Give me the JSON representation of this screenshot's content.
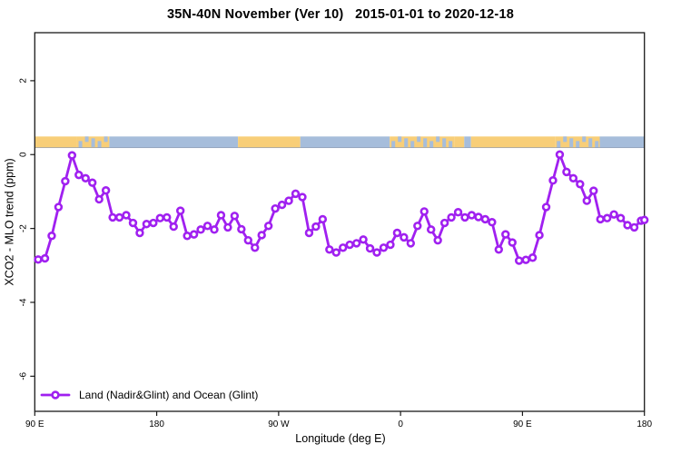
{
  "title": "35N-40N November (Ver 10)   2015-01-01 to 2020-12-18",
  "legend": {
    "label": "Land (Nadir&Glint) and Ocean (Glint)"
  },
  "colors": {
    "series_purple": "#A020F0",
    "marker_fill": "#ffffff",
    "land_yellow": "#F8CE78",
    "ocean_blue": "#A6BDDB",
    "band_edge": "#8c99b0",
    "axis_black": "#1a1a1a"
  },
  "chart_data": {
    "type": "line",
    "title": "35N-40N November (Ver 10)   2015-01-01 to 2020-12-18",
    "xlabel": "Longitude (deg E)",
    "ylabel": "XCO2 - MLO trend (ppm)",
    "xlim": [
      90,
      540
    ],
    "ylim": [
      -6.95,
      3.3
    ],
    "grid": false,
    "legend_position": "bottom-left",
    "x_ticks": [
      {
        "value": 90,
        "label": "90 E"
      },
      {
        "value": 180,
        "label": "180"
      },
      {
        "value": 270,
        "label": "90 W"
      },
      {
        "value": 360,
        "label": "0"
      },
      {
        "value": 450,
        "label": "90 E"
      },
      {
        "value": 540,
        "label": "180"
      }
    ],
    "y_ticks": [
      {
        "value": 2,
        "label": "2"
      },
      {
        "value": 0,
        "label": "0"
      },
      {
        "value": -2,
        "label": "-2"
      },
      {
        "value": -4,
        "label": "-4"
      },
      {
        "value": -6,
        "label": "-6"
      }
    ],
    "land_ocean_band": {
      "y_range_ppm": [
        0.18,
        0.49
      ],
      "segments": [
        {
          "from": 90,
          "to": 121,
          "type": "land"
        },
        {
          "from": 121,
          "to": 145,
          "type": "mixed"
        },
        {
          "from": 145,
          "to": 240,
          "type": "ocean"
        },
        {
          "from": 240,
          "to": 286,
          "type": "land"
        },
        {
          "from": 286,
          "to": 352,
          "type": "ocean"
        },
        {
          "from": 352,
          "to": 400,
          "type": "mixed"
        },
        {
          "from": 400,
          "to": 407,
          "type": "land"
        },
        {
          "from": 407,
          "to": 412,
          "type": "ocean"
        },
        {
          "from": 412,
          "to": 474,
          "type": "land"
        },
        {
          "from": 474,
          "to": 507,
          "type": "mixed"
        },
        {
          "from": 507,
          "to": 540,
          "type": "ocean"
        }
      ]
    },
    "series": [
      {
        "name": "Land (Nadir&Glint) and Ocean (Glint)",
        "marker": "open-circle",
        "color": "#A020F0",
        "points": [
          [
            92.5,
            -2.84
          ],
          [
            97.5,
            -2.81
          ],
          [
            102.5,
            -2.2
          ],
          [
            107.5,
            -1.42
          ],
          [
            112.5,
            -0.72
          ],
          [
            117.5,
            -0.02
          ],
          [
            122.5,
            -0.55
          ],
          [
            127.5,
            -0.64
          ],
          [
            132.5,
            -0.76
          ],
          [
            137.5,
            -1.21
          ],
          [
            142.5,
            -0.97
          ],
          [
            147.5,
            -1.7
          ],
          [
            152.5,
            -1.7
          ],
          [
            157.5,
            -1.64
          ],
          [
            162.5,
            -1.85
          ],
          [
            167.5,
            -2.12
          ],
          [
            172.5,
            -1.88
          ],
          [
            177.5,
            -1.85
          ],
          [
            182.5,
            -1.72
          ],
          [
            187.5,
            -1.7
          ],
          [
            192.5,
            -1.95
          ],
          [
            197.5,
            -1.52
          ],
          [
            202.5,
            -2.2
          ],
          [
            207.5,
            -2.16
          ],
          [
            212.5,
            -2.03
          ],
          [
            217.5,
            -1.93
          ],
          [
            222.5,
            -2.03
          ],
          [
            227.5,
            -1.64
          ],
          [
            232.5,
            -1.97
          ],
          [
            237.5,
            -1.66
          ],
          [
            242.5,
            -2.02
          ],
          [
            247.5,
            -2.32
          ],
          [
            252.5,
            -2.52
          ],
          [
            257.5,
            -2.18
          ],
          [
            262.5,
            -1.93
          ],
          [
            267.5,
            -1.46
          ],
          [
            272.5,
            -1.36
          ],
          [
            277.5,
            -1.25
          ],
          [
            282.5,
            -1.06
          ],
          [
            287.5,
            -1.15
          ],
          [
            292.5,
            -2.12
          ],
          [
            297.5,
            -1.95
          ],
          [
            302.5,
            -1.75
          ],
          [
            307.5,
            -2.57
          ],
          [
            312.5,
            -2.65
          ],
          [
            317.5,
            -2.52
          ],
          [
            322.5,
            -2.44
          ],
          [
            327.5,
            -2.4
          ],
          [
            332.5,
            -2.3
          ],
          [
            337.5,
            -2.54
          ],
          [
            342.5,
            -2.65
          ],
          [
            347.5,
            -2.52
          ],
          [
            352.5,
            -2.44
          ],
          [
            357.5,
            -2.12
          ],
          [
            362.5,
            -2.24
          ],
          [
            367.5,
            -2.4
          ],
          [
            372.5,
            -1.93
          ],
          [
            377.5,
            -1.54
          ],
          [
            382.5,
            -2.03
          ],
          [
            387.5,
            -2.32
          ],
          [
            392.5,
            -1.85
          ],
          [
            397.5,
            -1.7
          ],
          [
            402.5,
            -1.56
          ],
          [
            407.5,
            -1.7
          ],
          [
            412.5,
            -1.64
          ],
          [
            417.5,
            -1.69
          ],
          [
            422.5,
            -1.75
          ],
          [
            427.5,
            -1.83
          ],
          [
            432.5,
            -2.57
          ],
          [
            437.5,
            -2.16
          ],
          [
            442.5,
            -2.38
          ],
          [
            447.5,
            -2.87
          ],
          [
            452.5,
            -2.85
          ],
          [
            457.5,
            -2.79
          ],
          [
            462.5,
            -2.18
          ],
          [
            467.5,
            -1.42
          ],
          [
            472.5,
            -0.7
          ],
          [
            477.5,
            0.0
          ],
          [
            482.5,
            -0.47
          ],
          [
            487.5,
            -0.64
          ],
          [
            492.5,
            -0.8
          ],
          [
            497.5,
            -1.25
          ],
          [
            502.5,
            -0.98
          ],
          [
            507.5,
            -1.75
          ],
          [
            512.5,
            -1.72
          ],
          [
            517.5,
            -1.62
          ],
          [
            522.5,
            -1.72
          ],
          [
            527.5,
            -1.91
          ],
          [
            532.5,
            -1.97
          ],
          [
            537.5,
            -1.79
          ],
          [
            540,
            -1.77
          ]
        ]
      }
    ]
  }
}
